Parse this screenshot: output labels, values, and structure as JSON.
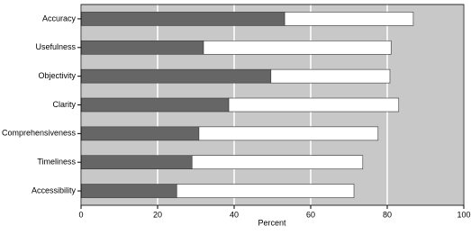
{
  "chart_data": {
    "type": "stacked-bar",
    "orientation": "horizontal",
    "categories": [
      "Accuracy",
      "Usefulness",
      "Objectivity",
      "Clarity",
      "Comprehensiveness",
      "Timeliness",
      "Accessibility"
    ],
    "series": [
      {
        "color": "#666666",
        "values": [
          53.2,
          32,
          49.6,
          38.6,
          30.8,
          29,
          25
        ]
      },
      {
        "color": "#ffffff",
        "values": [
          33.6,
          49,
          31.1,
          44.4,
          46.8,
          44.6,
          46.3
        ]
      }
    ],
    "xlabel": "Percent",
    "xlim": [
      0,
      100
    ],
    "xticks": [
      0,
      20,
      40,
      60,
      80,
      100
    ],
    "grid": true,
    "background": "#c8c8c8",
    "grid_color": "#ffffff"
  }
}
